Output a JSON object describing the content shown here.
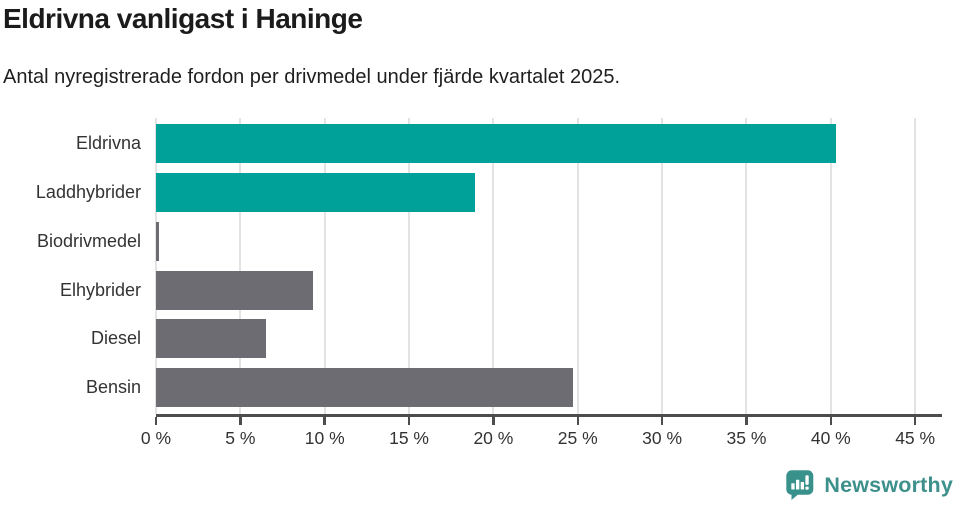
{
  "chart": {
    "title": "Eldrivna vanligast i Haninge",
    "subtitle": "Antal nyregistrerade fordon per drivmedel under fjärde kvartalet 2025."
  },
  "chart_data": {
    "type": "bar",
    "orientation": "horizontal",
    "title": "Eldrivna vanligast i Haninge",
    "subtitle": "Antal nyregistrerade fordon per drivmedel under fjärde kvartalet 2025.",
    "categories": [
      "Eldrivna",
      "Laddhybrider",
      "Biodrivmedel",
      "Elhybrider",
      "Diesel",
      "Bensin"
    ],
    "values": [
      40.3,
      18.9,
      0.2,
      9.3,
      6.5,
      24.7
    ],
    "unit": "%",
    "xlabel": "",
    "ylabel": "",
    "xlim": [
      0,
      45
    ],
    "x_ticks": [
      0,
      5,
      10,
      15,
      20,
      25,
      30,
      35,
      40,
      45
    ],
    "x_tick_labels": [
      "0 %",
      "5 %",
      "10 %",
      "15 %",
      "20 %",
      "25 %",
      "30 %",
      "35 %",
      "40 %",
      "45 %"
    ],
    "grid": true,
    "legend": false,
    "bar_colors": [
      "#00a198",
      "#00a198",
      "#6c6c72",
      "#6c6c72",
      "#6c6c72",
      "#6c6c72"
    ],
    "highlight_color": "#00a198",
    "default_color": "#6c6c72",
    "gridline_color": "#e3e3e3",
    "axis_color": "#4d4d4d"
  },
  "footer": {
    "brand": "Newsworthy",
    "brand_color": "#3d908b",
    "icon_color": "#39918b"
  }
}
